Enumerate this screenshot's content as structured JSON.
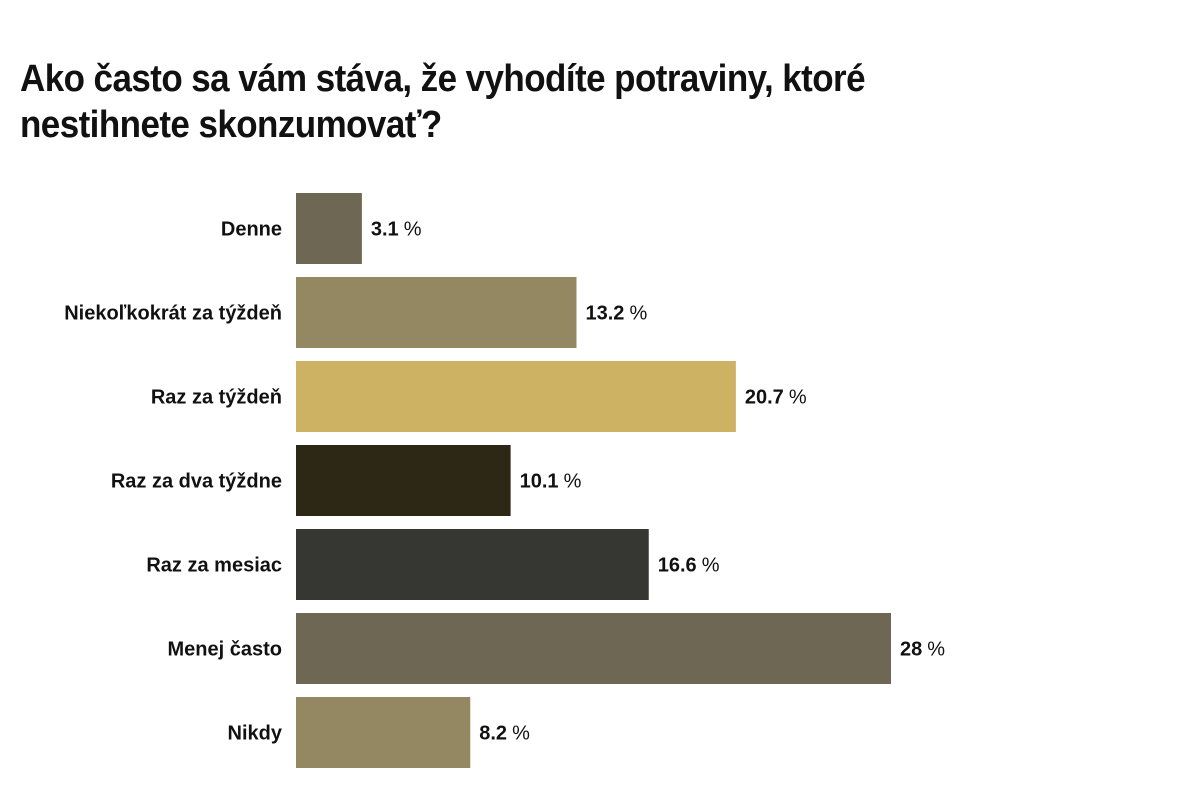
{
  "chart_data": {
    "type": "bar",
    "orientation": "horizontal",
    "title": "Ako často sa vám stáva, že vyhodíte potraviny, ktoré nestihnete skonzumovať?",
    "categories": [
      "Denne",
      "Niekoľkokrát za týždeň",
      "Raz za týždeň",
      "Raz za dva týždne",
      "Raz za mesiac",
      "Menej často",
      "Nikdy"
    ],
    "values": [
      3.1,
      13.2,
      20.7,
      10.1,
      16.6,
      28,
      8.2
    ],
    "value_labels": [
      "3.1",
      "13.2",
      "20.7",
      "10.1",
      "16.6",
      "28",
      "8.2"
    ],
    "unit": "%",
    "colors": [
      "#6e6753",
      "#948863",
      "#cdb264",
      "#2d2716",
      "#363633",
      "#6e6753",
      "#948863"
    ],
    "xlim": [
      0,
      28
    ],
    "grid": false,
    "legend": "none"
  }
}
